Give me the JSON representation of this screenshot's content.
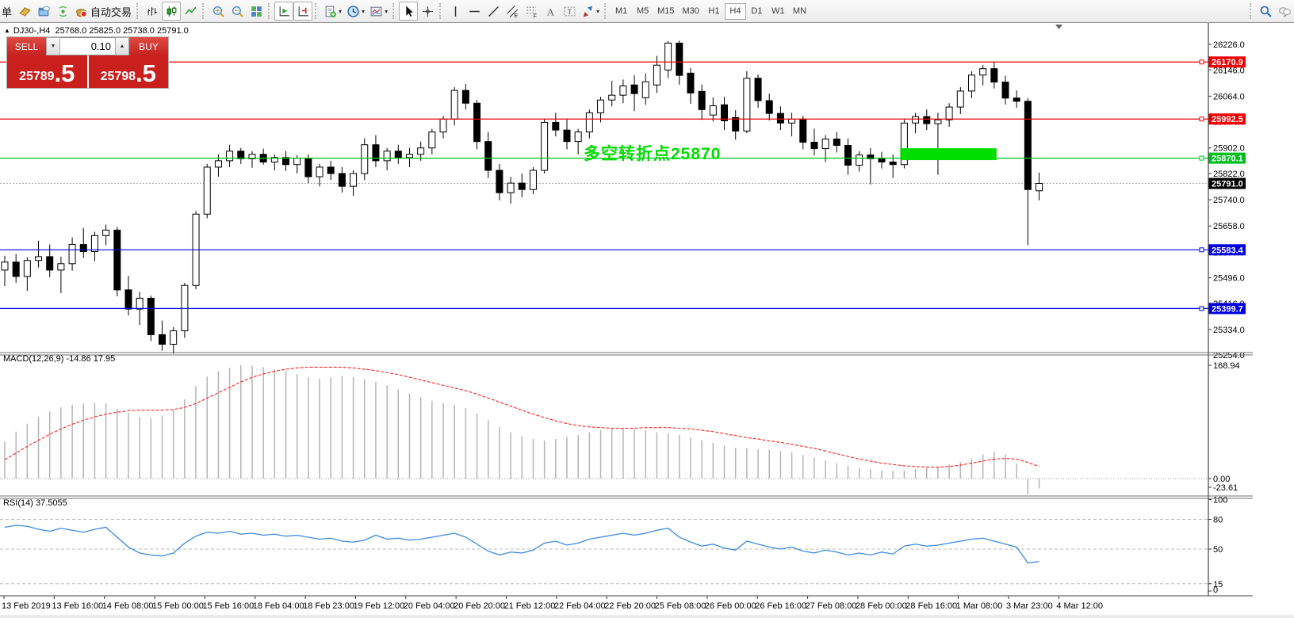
{
  "toolbar": {
    "groups": [
      {
        "items": [
          {
            "type": "label",
            "name": "new-order-partial-label",
            "text": "单"
          },
          {
            "type": "icon",
            "name": "charts-book-icon"
          },
          {
            "type": "icon",
            "name": "cloud-window-icon"
          },
          {
            "type": "icon",
            "name": "signal-icon"
          },
          {
            "type": "icon",
            "name": "autotrading-icon",
            "label": "自动交易"
          }
        ]
      },
      {
        "items": [
          {
            "type": "icon",
            "name": "bar-chart-icon"
          },
          {
            "type": "icon",
            "name": "candlestick-chart-icon",
            "active": true
          },
          {
            "type": "icon",
            "name": "line-chart-icon"
          }
        ]
      },
      {
        "items": [
          {
            "type": "icon",
            "name": "zoom-in-icon"
          },
          {
            "type": "icon",
            "name": "zoom-out-icon"
          },
          {
            "type": "icon",
            "name": "tile-windows-icon"
          }
        ]
      },
      {
        "items": [
          {
            "type": "icon",
            "name": "autoscroll-icon",
            "active": true
          },
          {
            "type": "icon",
            "name": "chart-shift-icon",
            "active": true
          }
        ]
      },
      {
        "items": [
          {
            "type": "icon",
            "name": "new-chart-icon",
            "caret": true
          },
          {
            "type": "icon",
            "name": "periods-clock-icon",
            "caret": true
          },
          {
            "type": "icon",
            "name": "templates-icon",
            "caret": true
          }
        ]
      },
      {
        "items": [
          {
            "type": "icon",
            "name": "cursor-icon",
            "active": true
          },
          {
            "type": "icon",
            "name": "crosshair-icon"
          }
        ]
      },
      {
        "items": [
          {
            "type": "icon",
            "name": "vertical-line-icon"
          },
          {
            "type": "icon",
            "name": "horizontal-line-icon"
          },
          {
            "type": "icon",
            "name": "trendline-icon"
          },
          {
            "type": "icon",
            "name": "equidistant-channel-icon"
          },
          {
            "type": "icon",
            "name": "fibonacci-icon"
          },
          {
            "type": "icon",
            "name": "text-icon"
          },
          {
            "type": "icon",
            "name": "text-label-icon"
          },
          {
            "type": "icon",
            "name": "arrow-objects-icon",
            "caret": true
          }
        ]
      },
      {
        "items": [
          {
            "type": "tf",
            "label": "M1"
          },
          {
            "type": "tf",
            "label": "M5"
          },
          {
            "type": "tf",
            "label": "M15"
          },
          {
            "type": "tf",
            "label": "M30"
          },
          {
            "type": "tf",
            "label": "H1"
          },
          {
            "type": "tf",
            "label": "H4",
            "active": true
          },
          {
            "type": "tf",
            "label": "D1"
          },
          {
            "type": "tf",
            "label": "W1"
          },
          {
            "type": "tf",
            "label": "MN"
          }
        ]
      },
      {
        "right": true,
        "items": [
          {
            "type": "icon",
            "name": "search-icon"
          },
          {
            "type": "icon",
            "name": "chat-icon"
          }
        ]
      }
    ]
  },
  "header": {
    "symbol": "DJ30-,H4",
    "ohlc": "25768.0 25825.0 25738.0 25791.0"
  },
  "trade": {
    "sell_label": "SELL",
    "buy_label": "BUY",
    "volume": "0.10",
    "sell_price": "25789",
    "sell_price_frac": ".5",
    "buy_price": "25798",
    "buy_price_frac": ".5"
  },
  "colors": {
    "resistance": "#f00000",
    "pivot_green": "#00c020",
    "support_blue": "#0000e0",
    "zone_green": "#00dd00",
    "annotation_green": "#00dd00",
    "macd_hist": "#b5b5b5",
    "macd_signal": "#ff2222",
    "rsi_line": "#3b8be0",
    "trade_panel_red": "#c9201e"
  },
  "chart_data": {
    "type": "candlestick",
    "symbol": "DJ30-",
    "timeframe": "H4",
    "title": "DJ30-,H4 25768.0 25825.0 25738.0 25791.0",
    "candles": [
      [
        25520,
        25565,
        25470,
        25545
      ],
      [
        25545,
        25570,
        25480,
        25500
      ],
      [
        25500,
        25560,
        25455,
        25550
      ],
      [
        25550,
        25612,
        25528,
        25562
      ],
      [
        25562,
        25600,
        25498,
        25520
      ],
      [
        25520,
        25562,
        25448,
        25540
      ],
      [
        25540,
        25622,
        25518,
        25600
      ],
      [
        25600,
        25652,
        25558,
        25578
      ],
      [
        25578,
        25640,
        25548,
        25628
      ],
      [
        25628,
        25662,
        25598,
        25645
      ],
      [
        25645,
        25655,
        25438,
        25458
      ],
      [
        25458,
        25502,
        25378,
        25398
      ],
      [
        25398,
        25452,
        25348,
        25432
      ],
      [
        25432,
        25440,
        25298,
        25318
      ],
      [
        25318,
        25362,
        25268,
        25288
      ],
      [
        25288,
        25342,
        25258,
        25330
      ],
      [
        25330,
        25480,
        25308,
        25472
      ],
      [
        25472,
        25705,
        25460,
        25695
      ],
      [
        25695,
        25852,
        25682,
        25842
      ],
      [
        25842,
        25882,
        25812,
        25862
      ],
      [
        25862,
        25912,
        25842,
        25892
      ],
      [
        25892,
        25902,
        25852,
        25868
      ],
      [
        25868,
        25892,
        25840,
        25882
      ],
      [
        25882,
        25900,
        25850,
        25858
      ],
      [
        25858,
        25882,
        25832,
        25872
      ],
      [
        25872,
        25892,
        25830,
        25850
      ],
      [
        25850,
        25880,
        25822,
        25870
      ],
      [
        25870,
        25882,
        25792,
        25812
      ],
      [
        25812,
        25852,
        25782,
        25842
      ],
      [
        25842,
        25862,
        25802,
        25822
      ],
      [
        25822,
        25842,
        25762,
        25782
      ],
      [
        25782,
        25832,
        25752,
        25822
      ],
      [
        25822,
        25932,
        25802,
        25912
      ],
      [
        25912,
        25942,
        25842,
        25862
      ],
      [
        25862,
        25902,
        25832,
        25892
      ],
      [
        25892,
        25912,
        25852,
        25872
      ],
      [
        25872,
        25902,
        25842,
        25882
      ],
      [
        25882,
        25922,
        25862,
        25902
      ],
      [
        25902,
        25962,
        25882,
        25952
      ],
      [
        25952,
        26002,
        25932,
        25992
      ],
      [
        25992,
        26092,
        25972,
        26082
      ],
      [
        26082,
        26102,
        26022,
        26042
      ],
      [
        26042,
        26052,
        25898,
        25922
      ],
      [
        25922,
        25952,
        25808,
        25832
      ],
      [
        25832,
        25852,
        25738,
        25762
      ],
      [
        25762,
        25812,
        25728,
        25792
      ],
      [
        25792,
        25822,
        25748,
        25772
      ],
      [
        25772,
        25842,
        25758,
        25832
      ],
      [
        25832,
        25992,
        25822,
        25982
      ],
      [
        25982,
        26012,
        25938,
        25958
      ],
      [
        25958,
        25992,
        25898,
        25922
      ],
      [
        25922,
        25962,
        25882,
        25952
      ],
      [
        25952,
        26022,
        25932,
        26012
      ],
      [
        26012,
        26062,
        25982,
        26052
      ],
      [
        26052,
        26112,
        26032,
        26067
      ],
      [
        26067,
        26116,
        26042,
        26096
      ],
      [
        26099,
        26129,
        26017,
        26072
      ],
      [
        26059,
        26135,
        26037,
        26109
      ],
      [
        26099,
        26190,
        26074,
        26161
      ],
      [
        26146,
        26236,
        26121,
        26230
      ],
      [
        26230,
        26238,
        26100,
        26129
      ],
      [
        26136,
        26152,
        26040,
        26074
      ],
      [
        26079,
        26100,
        25990,
        26022
      ],
      [
        26005,
        26060,
        25985,
        26034
      ],
      [
        26037,
        26062,
        25958,
        25987
      ],
      [
        25997,
        26020,
        25928,
        25955
      ],
      [
        25955,
        26142,
        25948,
        26120
      ],
      [
        26120,
        26132,
        26028,
        26050
      ],
      [
        26050,
        26072,
        25988,
        26010
      ],
      [
        26010,
        26032,
        25958,
        25980
      ],
      [
        25980,
        26012,
        25938,
        25992
      ],
      [
        25992,
        26002,
        25898,
        25920
      ],
      [
        25920,
        25962,
        25878,
        25900
      ],
      [
        25900,
        25942,
        25858,
        25930
      ],
      [
        25930,
        25952,
        25888,
        25910
      ],
      [
        25910,
        25932,
        25818,
        25848
      ],
      [
        25848,
        25892,
        25828,
        25880
      ],
      [
        25880,
        25902,
        25788,
        25868
      ],
      [
        25868,
        25890,
        25838,
        25858
      ],
      [
        25858,
        25882,
        25808,
        25850
      ],
      [
        25850,
        25992,
        25838,
        25980
      ],
      [
        25980,
        26012,
        25948,
        26000
      ],
      [
        26000,
        26022,
        25958,
        25978
      ],
      [
        25978,
        26012,
        25818,
        25990
      ],
      [
        25990,
        26042,
        25968,
        26030
      ],
      [
        26030,
        26092,
        26008,
        26080
      ],
      [
        26080,
        26142,
        26058,
        26130
      ],
      [
        26130,
        26162,
        26098,
        26150
      ],
      [
        26150,
        26172,
        26088,
        26108
      ],
      [
        26108,
        26128,
        26038,
        26058
      ],
      [
        26058,
        26082,
        26028,
        26048
      ],
      [
        26048,
        26058,
        25598,
        25772
      ],
      [
        25768,
        25825,
        25738,
        25791
      ]
    ],
    "y_ticks": [
      "26226.0",
      "26146.0",
      "26064.0",
      "25984.0",
      "25902.0",
      "25822.0",
      "25740.0",
      "25658.0",
      "25576.0",
      "25496.0",
      "25416.0",
      "25334.0",
      "25254.0"
    ],
    "price_lines": [
      {
        "price": 26170.9,
        "label": "26170.9",
        "color": "#f00000"
      },
      {
        "price": 25992.5,
        "label": "25992.5",
        "color": "#f00000"
      },
      {
        "price": 25870.1,
        "label": "25870.1",
        "color": "#00c020"
      },
      {
        "price": 25583.4,
        "label": "25583.4",
        "color": "#0000e0"
      },
      {
        "price": 25399.7,
        "label": "25399.7",
        "color": "#0000e0"
      }
    ],
    "current_price": {
      "price": 25791.0,
      "label": "25791.0"
    },
    "green_zone": {
      "from_candle": 80,
      "to_candle": 88,
      "price_top": 25901,
      "price_bottom": 25864,
      "color": "#00dd00"
    },
    "annotation": {
      "text": "多空转折点25870",
      "color": "#00dd00"
    },
    "macd": {
      "label": "MACD(12,26,9) -14.86 17.95",
      "ticks": [
        "168.94",
        "0.00",
        "-23.61"
      ],
      "hist": [
        55,
        70,
        82,
        92,
        100,
        106,
        110,
        112,
        113,
        112,
        104,
        98,
        92,
        90,
        94,
        102,
        118,
        138,
        152,
        160,
        165,
        169,
        168,
        166,
        163,
        160,
        156,
        151,
        149,
        151,
        153,
        151,
        148,
        144,
        139,
        133,
        127,
        121,
        116,
        112,
        110,
        105,
        97,
        87,
        77,
        69,
        63,
        59,
        57,
        59,
        62,
        65,
        69,
        72,
        74,
        75,
        74,
        72,
        69,
        67,
        65,
        61,
        57,
        53,
        49,
        46,
        45,
        44,
        43,
        41,
        39,
        35,
        31,
        27,
        23,
        19,
        16,
        14,
        12,
        11,
        12,
        14,
        16,
        18,
        21,
        25,
        30,
        36,
        40,
        36,
        22,
        -23.61,
        -14.86
      ],
      "signal": [
        28,
        38,
        48,
        57,
        66,
        74,
        81,
        87,
        92,
        96,
        99,
        101,
        102,
        102,
        102,
        103,
        106,
        112,
        120,
        128,
        136,
        144,
        151,
        156,
        160,
        163,
        165,
        166,
        166,
        166,
        166,
        165,
        163,
        161,
        158,
        155,
        151,
        147,
        143,
        139,
        135,
        131,
        126,
        120,
        114,
        108,
        102,
        96,
        91,
        86,
        82,
        79,
        77,
        76,
        75,
        75,
        75,
        76,
        76,
        76,
        75,
        74,
        72,
        70,
        67,
        64,
        61,
        59,
        56,
        54,
        51,
        48,
        45,
        41,
        37,
        33,
        29,
        26,
        23,
        21,
        19,
        18,
        17,
        17,
        18,
        20,
        23,
        26,
        29,
        30,
        29,
        24,
        17.95
      ]
    },
    "rsi": {
      "label": "RSI(14) 37.5055",
      "ticks": [
        "100",
        "80",
        "50",
        "15",
        "0"
      ],
      "levels": [
        80,
        50,
        15
      ],
      "values": [
        72,
        74,
        73,
        70,
        68,
        71,
        69,
        67,
        70,
        72,
        62,
        52,
        46,
        44,
        43,
        46,
        56,
        63,
        67,
        66,
        68,
        65,
        66,
        64,
        65,
        63,
        64,
        62,
        60,
        61,
        58,
        57,
        59,
        64,
        60,
        61,
        59,
        60,
        62,
        64,
        66,
        62,
        55,
        48,
        44,
        47,
        46,
        49,
        56,
        58,
        54,
        56,
        60,
        62,
        64,
        66,
        64,
        66,
        69,
        71,
        62,
        57,
        53,
        55,
        51,
        49,
        58,
        55,
        52,
        50,
        52,
        48,
        46,
        49,
        47,
        44,
        46,
        44,
        47,
        45,
        53,
        55,
        53,
        54,
        56,
        58,
        60,
        61,
        58,
        55,
        52,
        36,
        37.5
      ]
    },
    "x_ticks": [
      "13 Feb 2019",
      "13 Feb 16:00",
      "14 Feb 08:00",
      "15 Feb 00:00",
      "15 Feb 16:00",
      "18 Feb 04:00",
      "18 Feb 23:00",
      "19 Feb 12:00",
      "20 Feb 04:00",
      "20 Feb 20:00",
      "21 Feb 12:00",
      "22 Feb 04:00",
      "22 Feb 20:00",
      "25 Feb 08:00",
      "26 Feb 00:00",
      "26 Feb 16:00",
      "27 Feb 08:00",
      "28 Feb 00:00",
      "28 Feb 16:00",
      "1 Mar 08:00",
      "3 Mar 23:00",
      "4 Mar 12:00"
    ]
  }
}
